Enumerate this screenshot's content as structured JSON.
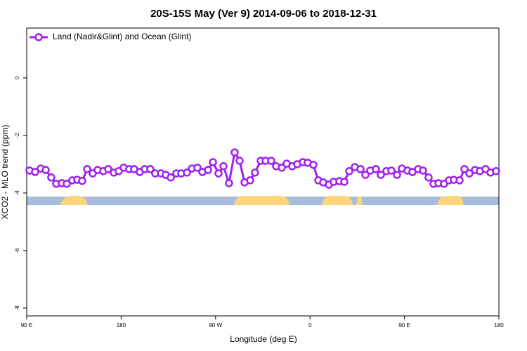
{
  "chart_data": {
    "type": "line",
    "title": "20S-15S May (Ver 9)   2014-09-06 to 2018-12-31",
    "x_label": "Longitude (deg E)",
    "y_label": "XCO2 - MLO trend (ppm)",
    "xlim": [
      90,
      540
    ],
    "xticks": [
      {
        "value": 90,
        "label": "90 E"
      },
      180,
      {
        "value": 270,
        "label": "90 W"
      },
      {
        "value": 360,
        "label": "0"
      },
      {
        "value": 450,
        "label": "90 E"
      },
      {
        "value": 540,
        "label": "180"
      }
    ],
    "ylim": [
      -8.27,
      1.73
    ],
    "yticks": [
      0,
      -2,
      -4,
      -6,
      -8
    ],
    "legend": "upper left",
    "series": [
      {
        "name": "Land (Nadir&Glint) and Ocean (Glint)",
        "color": "#a020f0",
        "x": [
          92.7,
          98.0,
          103.4,
          108.1,
          113.4,
          118.1,
          123.5,
          128.2,
          133.5,
          138.2,
          142.9,
          147.6,
          152.9,
          157.6,
          163.0,
          167.7,
          173.0,
          177.7,
          182.4,
          187.7,
          192.4,
          197.8,
          202.5,
          207.8,
          212.5,
          217.9,
          222.6,
          227.3,
          232.6,
          237.3,
          242.7,
          247.4,
          252.7,
          257.4,
          262.8,
          267.5,
          272.8,
          277.5,
          282.8,
          288.2,
          292.9,
          297.6,
          302.9,
          307.6,
          313.0,
          317.7,
          323.0,
          327.7,
          333.1,
          337.8,
          343.1,
          347.8,
          353.2,
          357.8,
          363.2,
          367.9,
          372.6,
          378.0,
          382.6,
          388.0,
          392.7,
          397.4,
          402.7,
          408.1,
          412.8,
          417.4,
          422.8,
          427.5,
          432.8,
          437.5,
          442.9,
          447.6,
          452.9,
          457.6,
          463.0,
          467.7,
          473.0,
          477.7,
          482.4,
          487.7,
          492.4,
          497.1,
          502.5,
          507.2,
          511.9,
          517.2,
          521.9,
          527.3,
          532.0,
          537.3
        ],
        "values": [
          -3.22,
          -3.27,
          -3.15,
          -3.2,
          -3.46,
          -3.68,
          -3.66,
          -3.68,
          -3.56,
          -3.54,
          -3.58,
          -3.17,
          -3.32,
          -3.2,
          -3.24,
          -3.17,
          -3.29,
          -3.24,
          -3.12,
          -3.17,
          -3.17,
          -3.27,
          -3.17,
          -3.17,
          -3.32,
          -3.32,
          -3.37,
          -3.46,
          -3.32,
          -3.32,
          -3.29,
          -3.15,
          -3.12,
          -3.27,
          -3.2,
          -2.93,
          -3.32,
          -3.07,
          -3.66,
          -2.59,
          -2.88,
          -3.63,
          -3.56,
          -3.29,
          -2.88,
          -2.88,
          -2.88,
          -3.07,
          -3.12,
          -2.98,
          -3.07,
          -3.0,
          -2.93,
          -2.95,
          -3.02,
          -3.56,
          -3.63,
          -3.71,
          -3.61,
          -3.59,
          -3.61,
          -3.24,
          -3.1,
          -3.17,
          -3.37,
          -3.22,
          -3.17,
          -3.37,
          -3.24,
          -3.22,
          -3.37,
          -3.15,
          -3.22,
          -3.27,
          -3.17,
          -3.22,
          -3.46,
          -3.68,
          -3.66,
          -3.68,
          -3.56,
          -3.54,
          -3.56,
          -3.17,
          -3.32,
          -3.2,
          -3.24,
          -3.17,
          -3.29,
          -3.24
        ]
      }
    ]
  }
}
